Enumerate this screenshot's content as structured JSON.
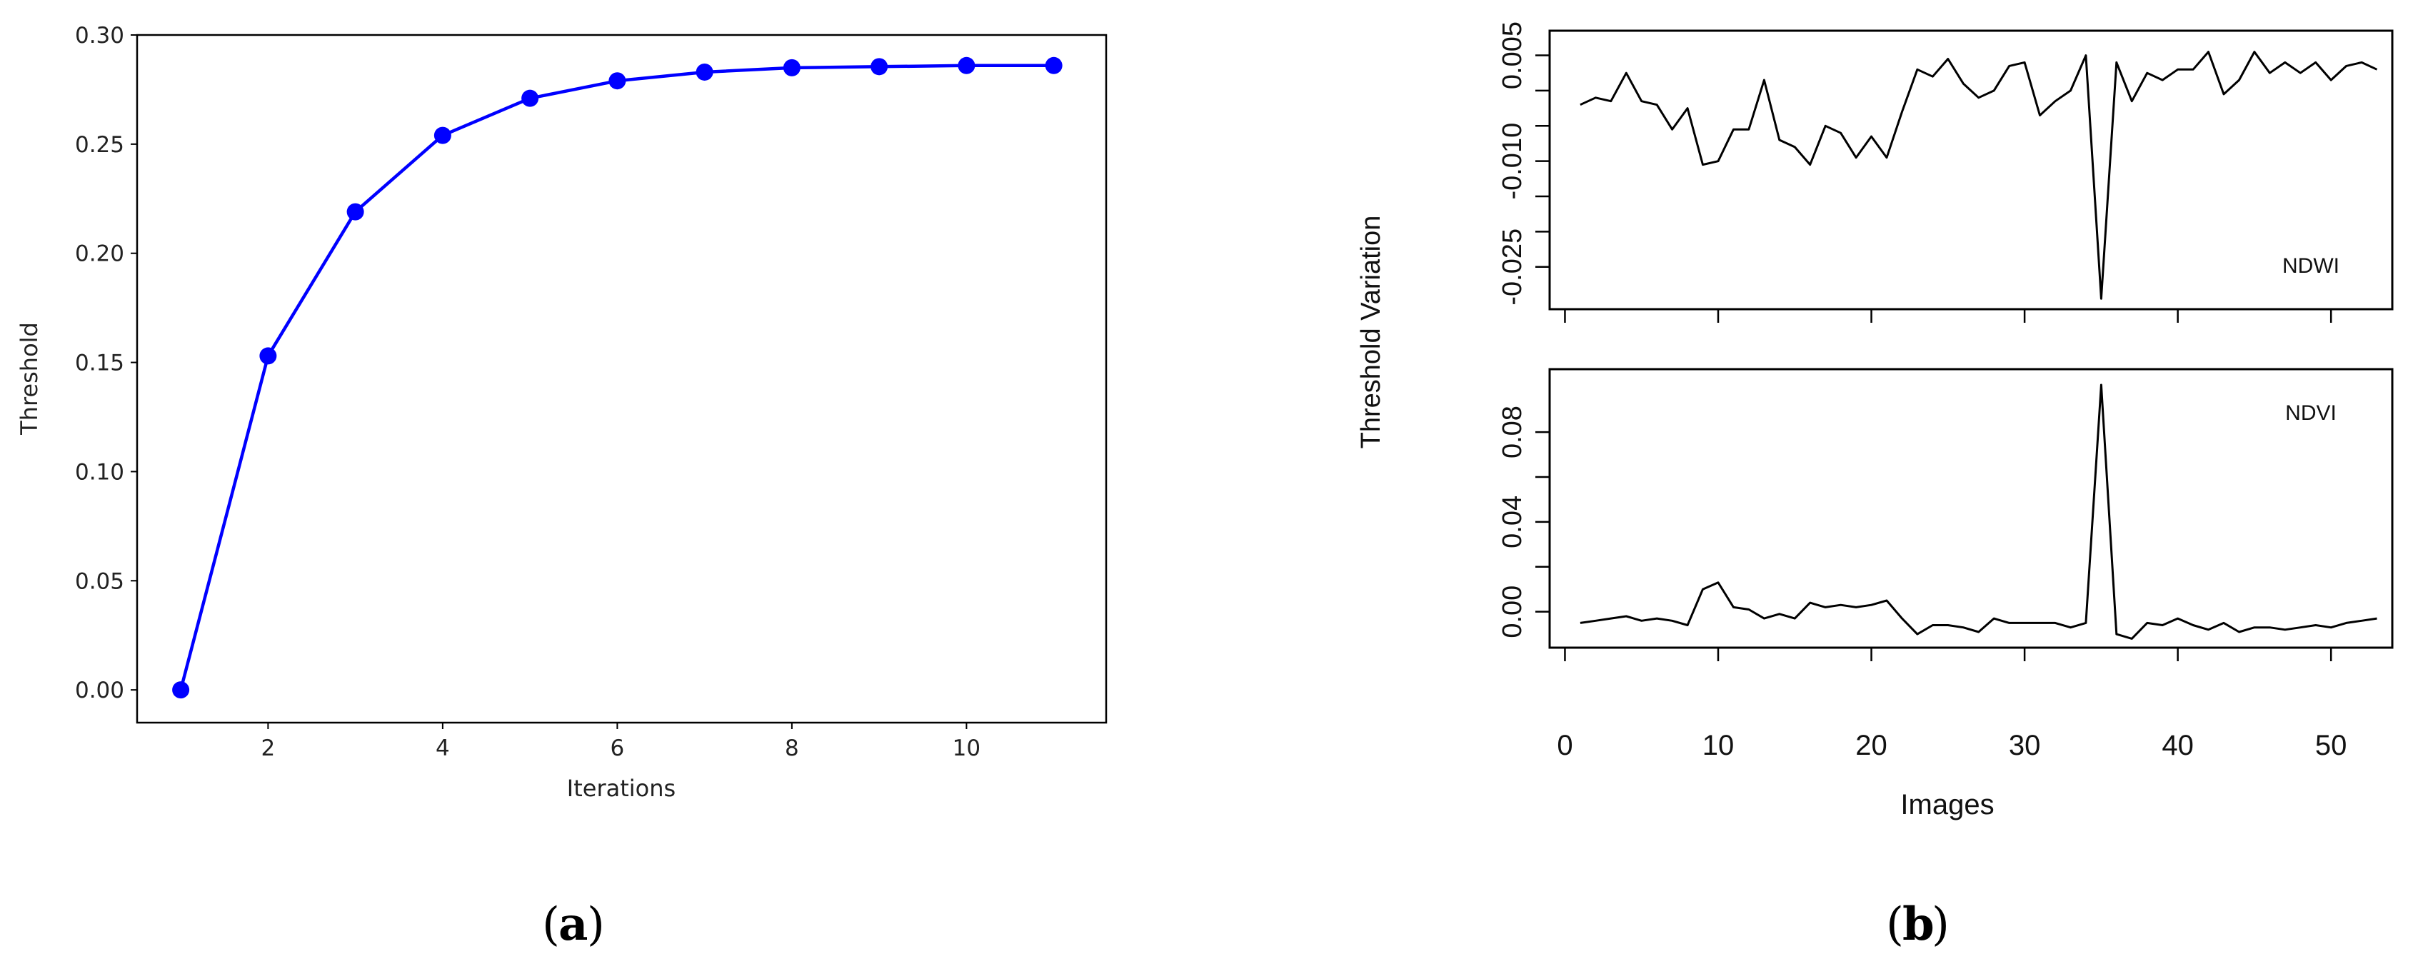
{
  "panel_labels": {
    "a": "a",
    "b": "b"
  },
  "chart_data": [
    {
      "id": "a",
      "type": "line",
      "ylabel": "Threshold",
      "xlabel": "Iterations",
      "xlim": [
        0.5,
        11.6
      ],
      "ylim": [
        -0.015,
        0.3
      ],
      "xticks": [
        2,
        4,
        6,
        8,
        10
      ],
      "yticks": [
        0.0,
        0.05,
        0.1,
        0.15,
        0.2,
        0.25,
        0.3
      ],
      "ytick_labels": [
        "0.00",
        "0.05",
        "0.10",
        "0.15",
        "0.20",
        "0.25",
        "0.30"
      ],
      "marker": "circle",
      "grid": false,
      "series": [
        {
          "color": "#0000ff",
          "x": [
            1,
            2,
            3,
            4,
            5,
            6,
            7,
            8,
            9,
            10,
            11
          ],
          "y": [
            0.0,
            0.153,
            0.219,
            0.254,
            0.271,
            0.279,
            0.283,
            0.285,
            0.2855,
            0.286,
            0.286
          ]
        }
      ]
    },
    {
      "id": "b",
      "type": "line",
      "shared_ylabel": "Threshold Variation",
      "xlabel": "Images",
      "xlim": [
        -1,
        54
      ],
      "xticks": [
        0,
        10,
        20,
        30,
        40,
        50
      ],
      "grid": false,
      "panels": [
        {
          "name": "NDWI",
          "label_text": "NDWI",
          "ylim": [
            -0.031,
            0.0085
          ],
          "yticks": [
            0.005,
            -0.01,
            -0.025
          ],
          "ytick_labels": [
            "0.005",
            "-0.010",
            "-0.025"
          ],
          "minor_yticks": [
            0.0,
            -0.005,
            -0.015,
            -0.02
          ],
          "color": "#000000",
          "x": [
            1,
            2,
            3,
            4,
            5,
            6,
            7,
            8,
            9,
            10,
            11,
            12,
            13,
            14,
            15,
            16,
            17,
            18,
            19,
            20,
            21,
            22,
            23,
            24,
            25,
            26,
            27,
            28,
            29,
            30,
            31,
            32,
            33,
            34,
            35,
            36,
            37,
            38,
            39,
            40,
            41,
            42,
            43,
            44,
            45,
            46,
            47,
            48,
            49,
            50,
            51,
            52,
            53
          ],
          "y": [
            -0.002,
            -0.001,
            -0.0015,
            0.0025,
            -0.0015,
            -0.002,
            -0.0055,
            -0.0025,
            -0.0105,
            -0.01,
            -0.0055,
            -0.0055,
            0.0015,
            -0.007,
            -0.008,
            -0.0105,
            -0.005,
            -0.006,
            -0.0095,
            -0.0065,
            -0.0095,
            -0.003,
            0.003,
            0.002,
            0.0045,
            0.001,
            -0.001,
            0.0,
            0.0035,
            0.004,
            -0.0035,
            -0.0015,
            0.0,
            0.005,
            -0.0295,
            0.004,
            -0.0015,
            0.0025,
            0.0015,
            0.003,
            0.003,
            0.0055,
            -0.0005,
            0.0015,
            0.0055,
            0.0025,
            0.004,
            0.0025,
            0.004,
            0.0015,
            0.0035,
            0.004,
            0.003
          ]
        },
        {
          "name": "NDVI",
          "label_text": "NDVI",
          "ylim": [
            -0.016,
            0.108
          ],
          "yticks": [
            0.0,
            0.04,
            0.08
          ],
          "ytick_labels": [
            "0.00",
            "0.04",
            "0.08"
          ],
          "minor_yticks": [
            0.02,
            0.06
          ],
          "color": "#000000",
          "x": [
            1,
            2,
            3,
            4,
            5,
            6,
            7,
            8,
            9,
            10,
            11,
            12,
            13,
            14,
            15,
            16,
            17,
            18,
            19,
            20,
            21,
            22,
            23,
            24,
            25,
            26,
            27,
            28,
            29,
            30,
            31,
            32,
            33,
            34,
            35,
            36,
            37,
            38,
            39,
            40,
            41,
            42,
            43,
            44,
            45,
            46,
            47,
            48,
            49,
            50,
            51,
            52,
            53
          ],
          "y": [
            -0.005,
            -0.004,
            -0.003,
            -0.002,
            -0.004,
            -0.003,
            -0.004,
            -0.006,
            0.01,
            0.013,
            0.002,
            0.001,
            -0.003,
            -0.001,
            -0.003,
            0.004,
            0.002,
            0.003,
            0.002,
            0.003,
            0.005,
            -0.003,
            -0.01,
            -0.006,
            -0.006,
            -0.007,
            -0.009,
            -0.003,
            -0.005,
            -0.005,
            -0.005,
            -0.005,
            -0.007,
            -0.005,
            0.101,
            -0.01,
            -0.012,
            -0.005,
            -0.006,
            -0.003,
            -0.006,
            -0.008,
            -0.005,
            -0.009,
            -0.007,
            -0.007,
            -0.008,
            -0.007,
            -0.006,
            -0.007,
            -0.005,
            -0.004,
            -0.003
          ]
        }
      ]
    }
  ]
}
